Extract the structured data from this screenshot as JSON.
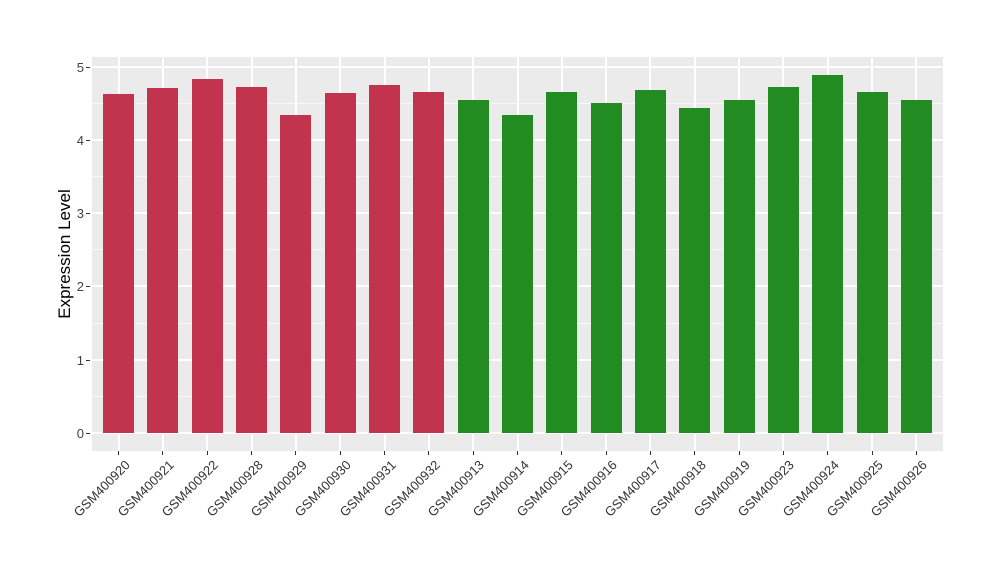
{
  "chart_data": {
    "type": "bar",
    "title": "",
    "xlabel": "",
    "ylabel": "Expression Level",
    "ylim": [
      0,
      5
    ],
    "yticks": [
      "0",
      "1",
      "2",
      "3",
      "4",
      "5"
    ],
    "grid": "on",
    "legend": "none",
    "categories": [
      "GSM400920",
      "GSM400921",
      "GSM400922",
      "GSM400928",
      "GSM400929",
      "GSM400930",
      "GSM400931",
      "GSM400932",
      "GSM400913",
      "GSM400914",
      "GSM400915",
      "GSM400916",
      "GSM400917",
      "GSM400918",
      "GSM400919",
      "GSM400923",
      "GSM400924",
      "GSM400925",
      "GSM400926"
    ],
    "values": [
      4.62,
      4.71,
      4.83,
      4.72,
      4.34,
      4.64,
      4.75,
      4.65,
      4.54,
      4.34,
      4.65,
      4.5,
      4.68,
      4.43,
      4.54,
      4.72,
      4.89,
      4.65,
      4.54
    ],
    "bar_colors": [
      "#C2334D",
      "#C2334D",
      "#C2334D",
      "#C2334D",
      "#C2334D",
      "#C2334D",
      "#C2334D",
      "#C2334D",
      "#228B22",
      "#228B22",
      "#228B22",
      "#228B22",
      "#228B22",
      "#228B22",
      "#228B22",
      "#228B22",
      "#228B22",
      "#228B22",
      "#228B22"
    ]
  },
  "style": {
    "panel_bg": "#EBEBEB",
    "grid_color": "#FFFFFF",
    "red_group_color": "#C2334D",
    "green_group_color": "#228B22",
    "tick_color": "#333333",
    "axis_text_color": "#404040",
    "axis_title_color": "#000000"
  }
}
